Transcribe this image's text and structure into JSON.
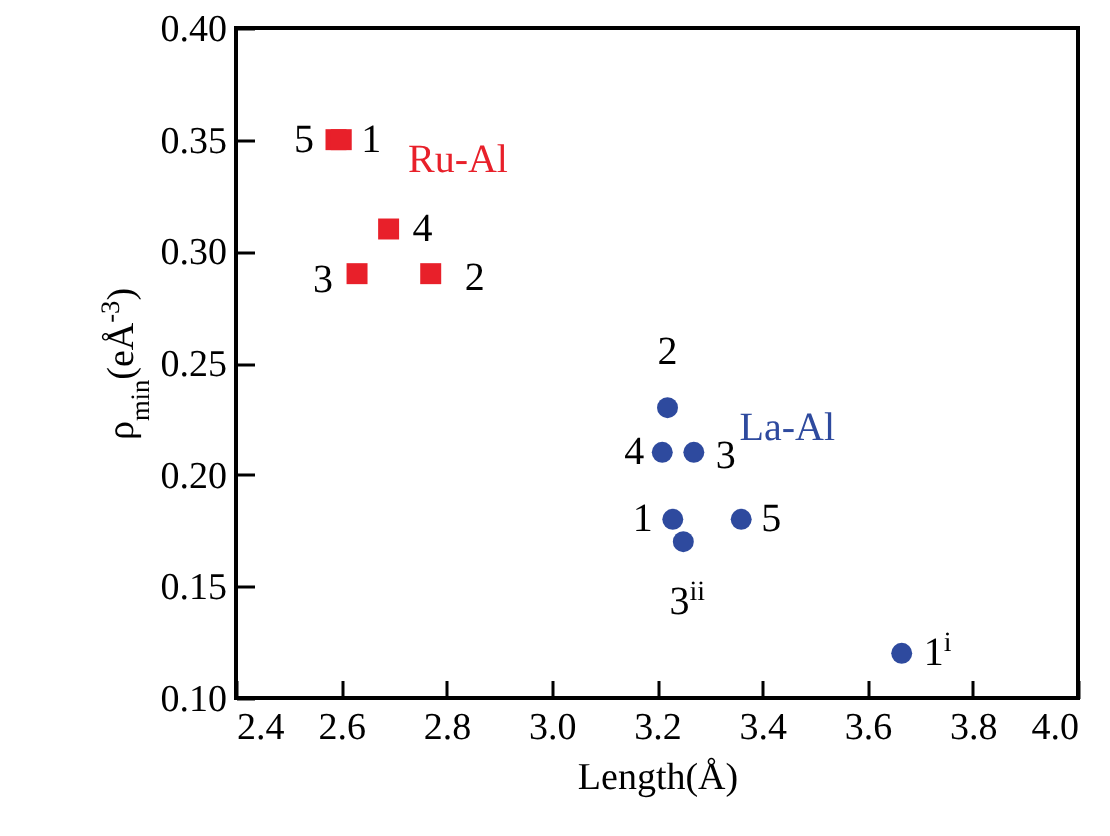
{
  "chart_data": {
    "type": "scatter",
    "xlabel": "Length(Å)",
    "ylabel": "ρ$_{min}$(eÅ$^{-3}$)",
    "xlim": [
      2.4,
      4.0
    ],
    "xticks": [
      {
        "value": 2.4,
        "label": "2.4"
      },
      {
        "value": 2.6,
        "label": "2.6"
      },
      {
        "value": 2.8,
        "label": "2.8"
      },
      {
        "value": 3.0,
        "label": "3.0"
      },
      {
        "value": 3.2,
        "label": "3.2"
      },
      {
        "value": 3.4,
        "label": "3.4"
      },
      {
        "value": 3.6,
        "label": "3.6"
      },
      {
        "value": 3.8,
        "label": "3.8"
      },
      {
        "value": 4.0,
        "label": "4.0"
      }
    ],
    "ylim": [
      0.1,
      0.4
    ],
    "yticks": [
      {
        "value": 0.1,
        "label": "0.10"
      },
      {
        "value": 0.15,
        "label": "0.15"
      },
      {
        "value": 0.2,
        "label": "0.20"
      },
      {
        "value": 0.25,
        "label": "0.25"
      },
      {
        "value": 0.3,
        "label": "0.30"
      },
      {
        "value": 0.35,
        "label": "0.35"
      },
      {
        "value": 0.4,
        "label": "0.40"
      }
    ],
    "grid": false,
    "legend": false,
    "series": [
      {
        "name": "Ru-Al",
        "color": "#e8202a",
        "marker": "square",
        "x": [
          2.59,
          2.6,
          2.69,
          2.63,
          2.77
        ],
        "values": [
          0.35,
          0.35,
          0.31,
          0.29,
          0.29
        ]
      },
      {
        "name": "La-Al",
        "color": "#2e4a9e",
        "marker": "circle",
        "x": [
          3.22,
          3.21,
          3.27,
          3.23,
          3.25,
          3.36,
          3.665
        ],
        "values": [
          0.23,
          0.21,
          0.21,
          0.18,
          0.17,
          0.18,
          0.12
        ]
      }
    ],
    "annotations": [
      {
        "text": "5",
        "x": 2.59,
        "y": 0.35
      },
      {
        "text": "1",
        "x": 2.6,
        "y": 0.35
      },
      {
        "text": "4",
        "x": 2.69,
        "y": 0.31
      },
      {
        "text": "3",
        "x": 2.63,
        "y": 0.29
      },
      {
        "text": "2",
        "x": 2.77,
        "y": 0.29
      },
      {
        "text": "2",
        "x": 3.22,
        "y": 0.23
      },
      {
        "text": "4",
        "x": 3.21,
        "y": 0.21
      },
      {
        "text": "3",
        "x": 3.27,
        "y": 0.21
      },
      {
        "text": "1",
        "x": 3.23,
        "y": 0.18
      },
      {
        "text": "5",
        "x": 3.36,
        "y": 0.18
      },
      {
        "text": "3$^{ii}$",
        "x": 3.25,
        "y": 0.17
      },
      {
        "text": "1$^{i}$",
        "x": 3.665,
        "y": 0.12
      }
    ]
  }
}
